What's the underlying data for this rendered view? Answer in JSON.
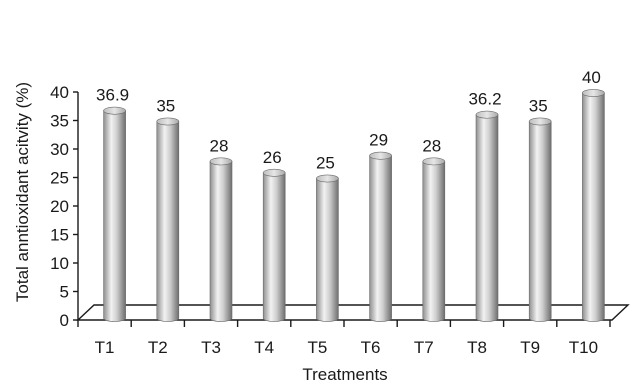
{
  "chart_data": {
    "type": "bar",
    "style": "3d-cylinder",
    "categories": [
      "T1",
      "T2",
      "T3",
      "T4",
      "T5",
      "T6",
      "T7",
      "T8",
      "T9",
      "T10"
    ],
    "values": [
      36.9,
      35,
      28,
      26,
      25,
      29,
      28,
      36.2,
      35,
      40
    ],
    "data_labels": [
      "36.9",
      "35",
      "28",
      "26",
      "25",
      "29",
      "28",
      "36.2",
      "35",
      "40"
    ],
    "xlabel": "Treatments",
    "ylabel": "Total anntioxidant acitvity (%)",
    "ylim": [
      0,
      40
    ],
    "yticks": [
      0,
      5,
      10,
      15,
      20,
      25,
      30,
      35,
      40
    ],
    "grid": false,
    "legend": "none",
    "bar_color": "#b9b9b9"
  }
}
